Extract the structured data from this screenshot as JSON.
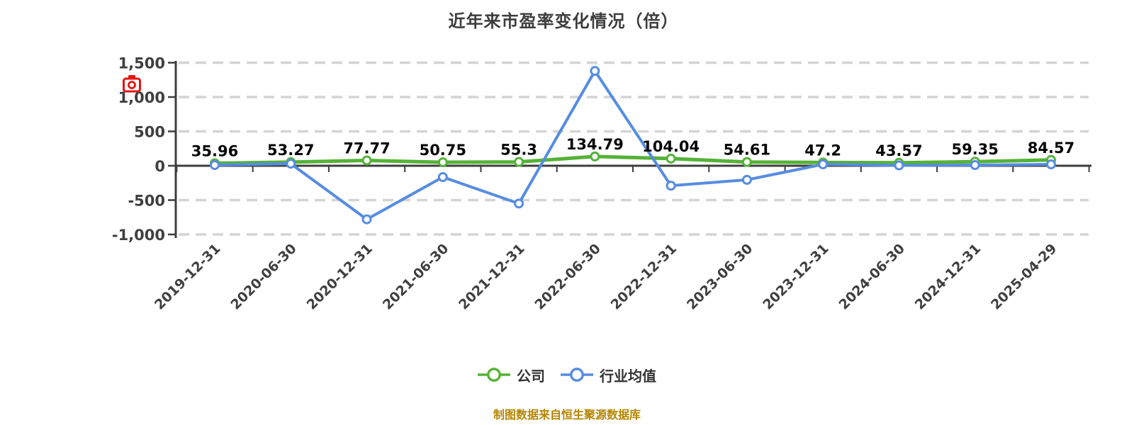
{
  "title": "近年来市盈率变化情况（倍）",
  "source_note": "制图数据来自恒生聚源数据库",
  "camera_icon_color": "#e61414",
  "legend": [
    {
      "label": "公司",
      "color": "#55b237"
    },
    {
      "label": "行业均值",
      "color": "#568ce2"
    }
  ],
  "chart_data": {
    "type": "line",
    "title": "近年来市盈率变化情况（倍）",
    "categories": [
      "2019-12-31",
      "2020-06-30",
      "2020-12-31",
      "2021-06-30",
      "2021-12-31",
      "2022-06-30",
      "2022-12-31",
      "2023-06-30",
      "2023-12-31",
      "2024-06-30",
      "2024-12-31",
      "2025-04-29"
    ],
    "series": [
      {
        "name": "公司",
        "color": "#55b237",
        "values": [
          35.96,
          53.27,
          77.77,
          50.75,
          55.3,
          134.79,
          104.04,
          54.61,
          47.2,
          43.57,
          59.35,
          84.57
        ]
      },
      {
        "name": "行业均值",
        "color": "#568ce2",
        "values": [
          10,
          30,
          -780,
          -165,
          -550,
          1380,
          -290,
          -205,
          20,
          5,
          10,
          20
        ]
      }
    ],
    "value_labels": [
      "35.96",
      "53.27",
      "77.77",
      "50.75",
      "55.3",
      "134.79",
      "104.04",
      "54.61",
      "47.2",
      "43.57",
      "59.35",
      "84.57"
    ],
    "value_labels_series": "公司",
    "ylim": [
      -1000,
      1500
    ],
    "yticks": [
      1500,
      1000,
      500,
      0,
      -500,
      -1000
    ],
    "ytick_labels": [
      "1,500",
      "1,000",
      "500",
      "0",
      "-500",
      "-1,000"
    ],
    "grid": "horizontal-dashed",
    "legend_position": "bottom",
    "colors": {
      "axis": "#3d3d3d",
      "gridline": "#d4d4d4",
      "tick_text": "#3f3f3f",
      "value_label_text": "#050505"
    }
  }
}
